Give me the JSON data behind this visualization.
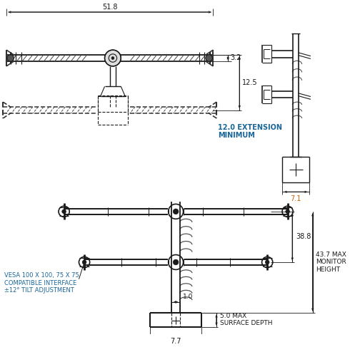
{
  "bg_color": "#ffffff",
  "lc": "#1a1a1a",
  "oc": "#cc6600",
  "bc": "#1a6699",
  "dims": {
    "top_width": "51.8",
    "gap_top": "3.2",
    "depth": "12.5",
    "ext_min": "12.0 EXTENSION\nMINIMUM",
    "side_w": "7.1",
    "h38": "38.8",
    "h43": "43.7 MAX\nMONITOR\nHEIGHT",
    "surf": "5.0 MAX\nSURFACE DEPTH",
    "base_w": "7.7",
    "grom": "1.0",
    "vesa": "VESA 100 X 100, 75 X 75\nCOMPATIBLE INTERFACE\n±12° TILT ADJUSTMENT"
  }
}
